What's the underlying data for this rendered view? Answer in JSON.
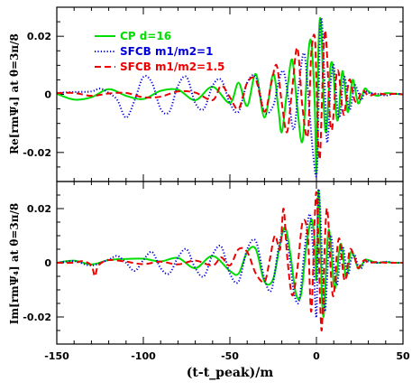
{
  "chart_data": [
    {
      "type": "line",
      "ylabel": "Re[rmΨ₄] at θ=3π/8",
      "xlim": [
        -150,
        50
      ],
      "ylim": [
        -0.03,
        0.03
      ],
      "yticks": [
        -0.02,
        0,
        0.02
      ],
      "ytick_labels": [
        "-0.02",
        "0",
        "0.02"
      ],
      "legend_position": "top-left",
      "series": [
        {
          "name": "CP d=16",
          "color": "#00dd00",
          "dash": "solid",
          "x": [
            -150,
            -140,
            -130,
            -120,
            -110,
            -100,
            -90,
            -80,
            -70,
            -60,
            -50,
            -45,
            -40,
            -35,
            -30,
            -25,
            -22,
            -20,
            -17,
            -14,
            -11,
            -8,
            -5,
            -3,
            -1,
            0,
            1,
            2,
            3,
            4,
            5,
            6,
            7,
            8,
            9,
            10,
            11,
            12,
            13,
            14,
            15,
            16,
            17,
            18,
            19,
            20,
            21,
            22,
            24,
            26,
            28,
            30,
            35,
            40,
            45,
            50
          ],
          "y": [
            0.0002,
            -0.0018,
            -0.001,
            0.0018,
            -0.0005,
            -0.0016,
            0.0012,
            0.0016,
            -0.002,
            0.0026,
            -0.003,
            0.004,
            -0.004,
            0.007,
            -0.008,
            0.007,
            -0.005,
            -0.013,
            0.001,
            0.012,
            -0.005,
            -0.016,
            0.012,
            0.018,
            -0.003,
            -0.027,
            0.012,
            0.026,
            0.02,
            0.0,
            -0.012,
            -0.011,
            0.0,
            0.009,
            0.011,
            0.006,
            -0.004,
            -0.009,
            -0.006,
            0.003,
            0.008,
            0.005,
            -0.001,
            -0.006,
            -0.004,
            0.002,
            0.005,
            0.003,
            -0.003,
            -0.001,
            0.002,
            0.001,
            -0.0005,
            0.0004,
            0.0002,
            0.0
          ]
        },
        {
          "name": "SFCB m1/m2=1",
          "color": "#0000dd",
          "dash": "dotted",
          "x": [
            -150,
            -140,
            -130,
            -125,
            -120,
            -115,
            -110,
            -105,
            -100,
            -95,
            -90,
            -85,
            -80,
            -75,
            -70,
            -65,
            -60,
            -55,
            -50,
            -45,
            -40,
            -35,
            -30,
            -25,
            -22,
            -19,
            -16,
            -13,
            -10,
            -7,
            -4,
            -2,
            0,
            1,
            2,
            3,
            4,
            5,
            6,
            7,
            8,
            9,
            10,
            11,
            12,
            13,
            14,
            15,
            16,
            17,
            18,
            19,
            20,
            22,
            24,
            26,
            28,
            30,
            35,
            40,
            45,
            50
          ],
          "y": [
            0.0005,
            0.0008,
            0.001,
            0.002,
            0.0005,
            -0.002,
            -0.008,
            -0.002,
            0.006,
            0.004,
            -0.005,
            -0.006,
            0.003,
            0.006,
            -0.003,
            -0.005,
            0.003,
            0.005,
            -0.003,
            -0.006,
            0.004,
            0.006,
            -0.006,
            -0.004,
            0.004,
            0.008,
            -0.002,
            -0.012,
            0.004,
            0.014,
            -0.006,
            -0.02,
            -0.028,
            -0.01,
            0.02,
            0.026,
            0.015,
            0.0,
            -0.016,
            -0.012,
            0.002,
            0.008,
            0.01,
            0.004,
            -0.004,
            -0.008,
            -0.006,
            0.002,
            0.006,
            0.004,
            -0.002,
            -0.005,
            -0.004,
            0.003,
            0.001,
            -0.002,
            0.001,
            0.0005,
            0.0002,
            -0.0004,
            0.0002,
            0.0
          ]
        },
        {
          "name": "SFCB m1/m2=1.5",
          "color": "#ee0000",
          "dash": "dashed",
          "x": [
            -150,
            -140,
            -130,
            -120,
            -110,
            -100,
            -90,
            -80,
            -70,
            -60,
            -55,
            -50,
            -45,
            -40,
            -35,
            -30,
            -26,
            -23,
            -20,
            -17,
            -14,
            -11,
            -8,
            -5,
            -3,
            -1,
            0,
            1,
            2,
            3,
            4,
            5,
            6,
            7,
            8,
            9,
            10,
            11,
            12,
            13,
            14,
            15,
            16,
            17,
            18,
            19,
            20,
            22,
            24,
            26,
            28,
            30,
            35,
            40,
            45,
            50
          ],
          "y": [
            0.0004,
            0.0005,
            -0.0005,
            0.0003,
            0.0005,
            -0.001,
            -0.0008,
            0.001,
            0.0006,
            -0.002,
            0.003,
            -0.001,
            -0.005,
            0.004,
            0.005,
            -0.006,
            0.004,
            0.01,
            -0.003,
            -0.013,
            0.002,
            0.016,
            -0.005,
            -0.014,
            0.014,
            0.02,
            0.004,
            -0.016,
            -0.022,
            -0.006,
            0.013,
            0.022,
            0.015,
            0.002,
            -0.01,
            -0.012,
            -0.006,
            0.003,
            0.008,
            0.007,
            0.001,
            -0.005,
            -0.007,
            -0.003,
            0.002,
            0.005,
            0.004,
            -0.002,
            -0.002,
            0.001,
            0.001,
            -0.0005,
            0.0003,
            0.0,
            0.0002,
            0.0
          ]
        }
      ]
    },
    {
      "type": "line",
      "ylabel": "Im[rmΨ₄] at θ=3π/8",
      "xlabel": "(t-t_peak)/m",
      "xlim": [
        -150,
        50
      ],
      "ylim": [
        -0.03,
        0.03
      ],
      "xticks": [
        -150,
        -100,
        -50,
        0,
        50
      ],
      "xtick_labels": [
        "-150",
        "-100",
        "-50",
        "0",
        "50"
      ],
      "yticks": [
        -0.02,
        0,
        0.02
      ],
      "ytick_labels": [
        "-0.02",
        "0",
        "0.02"
      ],
      "series": [
        {
          "name": "CP d=16",
          "color": "#00dd00",
          "dash": "solid",
          "x": [
            -150,
            -140,
            -130,
            -120,
            -110,
            -100,
            -90,
            -80,
            -70,
            -60,
            -50,
            -45,
            -40,
            -35,
            -30,
            -25,
            -21,
            -18,
            -15,
            -12,
            -9,
            -6,
            -3,
            -1,
            0,
            1,
            2,
            3,
            4,
            5,
            6,
            7,
            8,
            9,
            10,
            11,
            12,
            13,
            14,
            15,
            16,
            17,
            18,
            19,
            20,
            22,
            24,
            26,
            28,
            30,
            35,
            40,
            45,
            50
          ],
          "y": [
            0.0,
            0.0008,
            -0.0006,
            0.001,
            0.0014,
            0.0015,
            0.0005,
            0.0018,
            -0.002,
            0.0025,
            -0.003,
            -0.004,
            0.004,
            0.005,
            -0.007,
            -0.006,
            0.007,
            0.013,
            0.003,
            -0.011,
            -0.012,
            0.005,
            0.016,
            0.008,
            -0.006,
            0.026,
            0.015,
            -0.01,
            -0.02,
            -0.011,
            0.004,
            0.012,
            0.009,
            0.0,
            -0.008,
            -0.009,
            -0.003,
            0.004,
            0.007,
            0.005,
            -0.001,
            -0.005,
            -0.004,
            0.001,
            0.004,
            0.002,
            -0.002,
            -0.001,
            0.001,
            0.001,
            0.0,
            0.0003,
            0.0,
            0.0
          ]
        },
        {
          "name": "SFCB m1/m2=1",
          "color": "#0000dd",
          "dash": "dotted",
          "x": [
            -150,
            -140,
            -130,
            -120,
            -115,
            -110,
            -105,
            -100,
            -95,
            -90,
            -85,
            -80,
            -75,
            -70,
            -65,
            -60,
            -55,
            -50,
            -45,
            -40,
            -35,
            -30,
            -26,
            -22,
            -19,
            -16,
            -13,
            -10,
            -7,
            -4,
            -2,
            0,
            1,
            2,
            3,
            4,
            5,
            6,
            7,
            8,
            9,
            10,
            11,
            12,
            13,
            14,
            15,
            16,
            17,
            18,
            19,
            20,
            22,
            24,
            26,
            28,
            30,
            35,
            40,
            45,
            50
          ],
          "y": [
            0.0,
            0.0006,
            -0.001,
            0.0012,
            0.0025,
            0.0,
            -0.003,
            0.001,
            0.004,
            -0.002,
            -0.004,
            0.002,
            0.005,
            -0.002,
            -0.005,
            0.003,
            0.006,
            -0.004,
            -0.007,
            0.005,
            0.008,
            -0.006,
            -0.01,
            0.005,
            0.012,
            0.004,
            -0.011,
            -0.014,
            0.004,
            0.018,
            0.005,
            -0.02,
            0.024,
            0.022,
            0.006,
            -0.01,
            -0.018,
            -0.008,
            0.004,
            0.01,
            0.008,
            0.0,
            -0.006,
            -0.008,
            -0.003,
            0.003,
            0.006,
            0.004,
            -0.001,
            -0.004,
            -0.003,
            0.001,
            0.003,
            -0.001,
            -0.002,
            0.001,
            0.0005,
            0.0,
            0.0003,
            0.0,
            0.0
          ]
        },
        {
          "name": "SFCB m1/m2=1.5",
          "color": "#ee0000",
          "dash": "dashed",
          "x": [
            -150,
            -140,
            -135,
            -130,
            -128,
            -126,
            -120,
            -110,
            -100,
            -90,
            -80,
            -70,
            -60,
            -55,
            -50,
            -45,
            -40,
            -35,
            -30,
            -27,
            -24,
            -21,
            -19,
            -17,
            -14,
            -11,
            -8,
            -5,
            -3,
            -1,
            0,
            1,
            2,
            3,
            4,
            5,
            6,
            7,
            8,
            9,
            10,
            11,
            12,
            13,
            14,
            15,
            16,
            17,
            18,
            19,
            20,
            22,
            24,
            26,
            28,
            30,
            35,
            40,
            45,
            50
          ],
          "y": [
            0.0,
            0.0,
            0.0006,
            -0.001,
            -0.005,
            -0.001,
            0.001,
            0.0004,
            -0.0005,
            0.0004,
            -0.0006,
            0.0008,
            -0.001,
            0.002,
            -0.001,
            0.005,
            0.004,
            -0.004,
            -0.007,
            0.001,
            0.01,
            0.005,
            0.02,
            0.003,
            -0.012,
            -0.002,
            0.015,
            0.01,
            -0.018,
            0.016,
            0.026,
            0.012,
            -0.012,
            -0.025,
            -0.01,
            0.01,
            0.02,
            0.014,
            0.0,
            -0.01,
            -0.012,
            -0.004,
            0.005,
            0.009,
            0.006,
            -0.001,
            -0.006,
            -0.006,
            -0.001,
            0.004,
            0.005,
            0.002,
            -0.002,
            0.0,
            0.001,
            0.0,
            0.0003,
            0.0,
            0.0,
            0.0
          ]
        }
      ]
    }
  ]
}
